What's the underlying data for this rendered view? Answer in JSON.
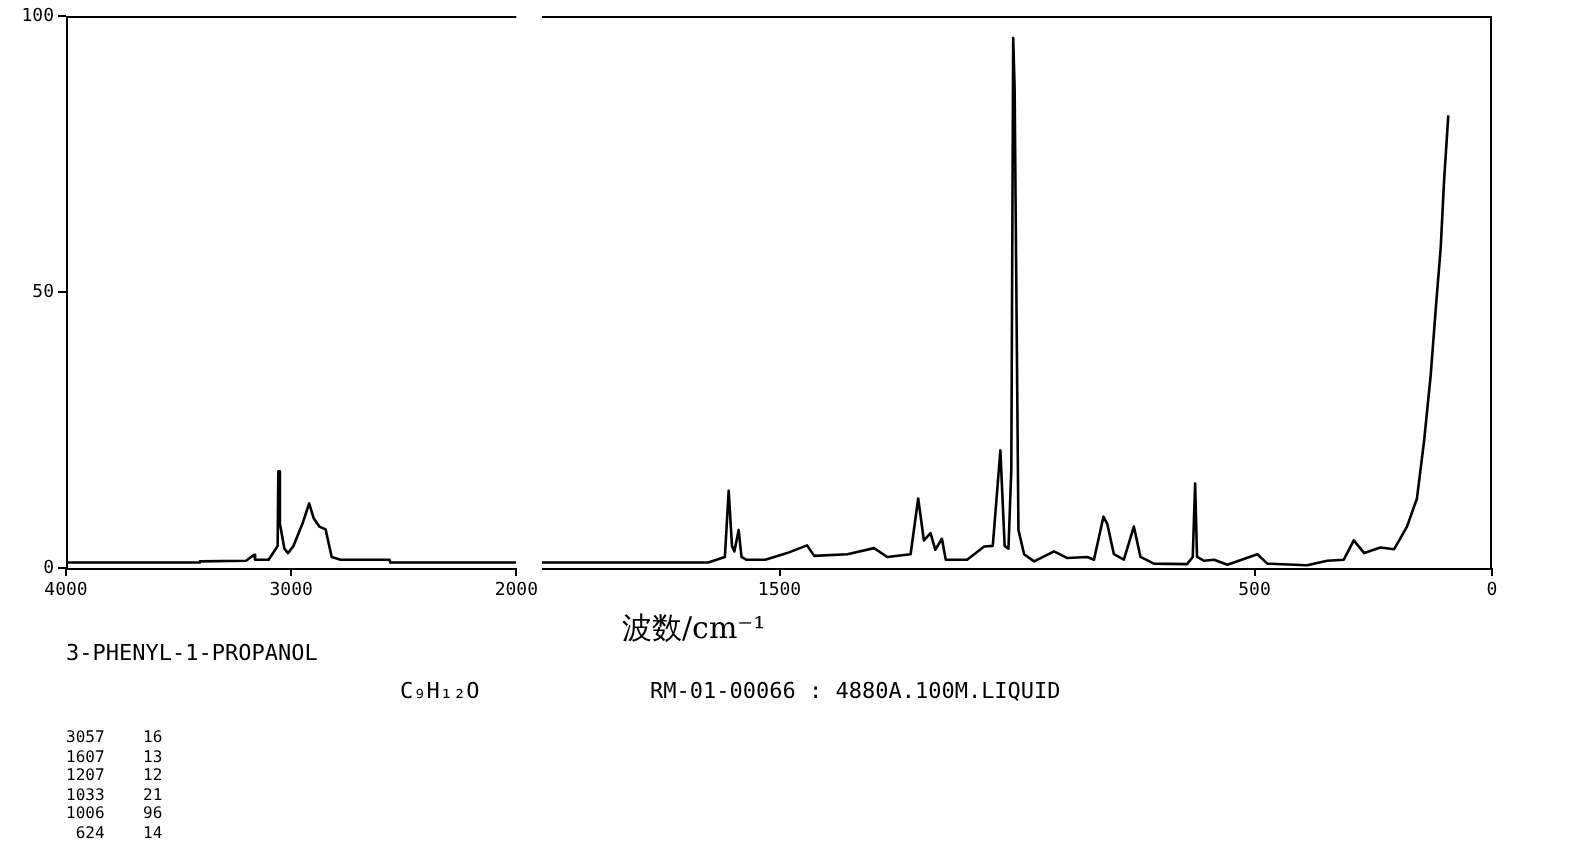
{
  "chart_data": [
    {
      "type": "line",
      "title": "3-PHENYL-1-PROPANOL",
      "subtitle": "C₉H₁₂O",
      "annotations": [
        "RM-01-00066 : 4880A.100M.LIQUID",
        "3057    16",
        "1607    13",
        "1207    12",
        "1033    21",
        "1006    96",
        " 624    14"
      ],
      "series": [
        {
          "color": "#000000",
          "x": [
            4000,
            3410,
            3405,
            3200,
            3165,
            3160,
            3100,
            3060,
            3057,
            3050,
            3030,
            3014,
            2990,
            2950,
            2920,
            2900,
            2875,
            2847,
            2820,
            2780,
            2750,
            2563,
            2560,
            2000
          ],
          "values": [
            1,
            1,
            1.2,
            1.3,
            2.4,
            1.5,
            1.5,
            4,
            17.5,
            8,
            3.5,
            2.7,
            4,
            8,
            11.7,
            9,
            7.5,
            7,
            2,
            1.5,
            1.5,
            1.5,
            1,
            1
          ]
        }
      ],
      "xlim": [
        4000,
        2000
      ],
      "xticks": [
        4000,
        3000,
        2000
      ],
      "ylim": [
        0,
        100
      ],
      "yticks": [
        0,
        50,
        100
      ],
      "legend": false,
      "marker": "none",
      "line_style": "solid"
    },
    {
      "type": "line",
      "xlabel": "波数/cm⁻¹",
      "series": [
        {
          "color": "#000000",
          "x": [
            2000,
            1650,
            1615,
            1607,
            1600,
            1595,
            1586,
            1580,
            1570,
            1530,
            1484,
            1442,
            1427,
            1357,
            1301,
            1273,
            1224,
            1208,
            1196,
            1182,
            1172,
            1158,
            1150,
            1105,
            1069,
            1051,
            1035,
            1026,
            1018,
            1012,
            1008,
            1005,
            997,
            985,
            964,
            922,
            894,
            852,
            838,
            818,
            810,
            796,
            775,
            754,
            740,
            712,
            642,
            630,
            625,
            621,
            606,
            585,
            557,
            494,
            473,
            389,
            347,
            312,
            291,
            269,
            235,
            206,
            179,
            158,
            143,
            129,
            118,
            108,
            101,
            92
          ],
          "values": [
            1,
            1,
            2,
            14,
            4,
            3,
            6.9,
            2,
            1.5,
            1.5,
            2.7,
            4.1,
            2.2,
            2.5,
            3.6,
            2,
            2.5,
            12.6,
            5,
            6.3,
            3.3,
            5.3,
            1.5,
            1.5,
            3.9,
            4,
            21.3,
            4,
            3.5,
            17.8,
            96,
            87,
            6.9,
            2.5,
            1.2,
            3,
            1.8,
            2,
            1.5,
            9.3,
            8,
            2.5,
            1.5,
            7.5,
            2,
            0.8,
            0.7,
            2,
            15.3,
            2,
            1.3,
            1.5,
            0.6,
            2.5,
            0.8,
            0.5,
            1.3,
            1.5,
            5,
            2.7,
            3.7,
            3.4,
            7.5,
            12.6,
            23,
            35,
            47.4,
            58,
            70,
            82
          ]
        }
      ],
      "xlim": [
        2000,
        0
      ],
      "xticks": [
        1500,
        500,
        0
      ],
      "ylim": [
        0,
        100
      ],
      "yticks": [
        0,
        50,
        100
      ],
      "tick_labels": "x",
      "legend": false,
      "marker": "none",
      "line_style": "solid"
    }
  ]
}
